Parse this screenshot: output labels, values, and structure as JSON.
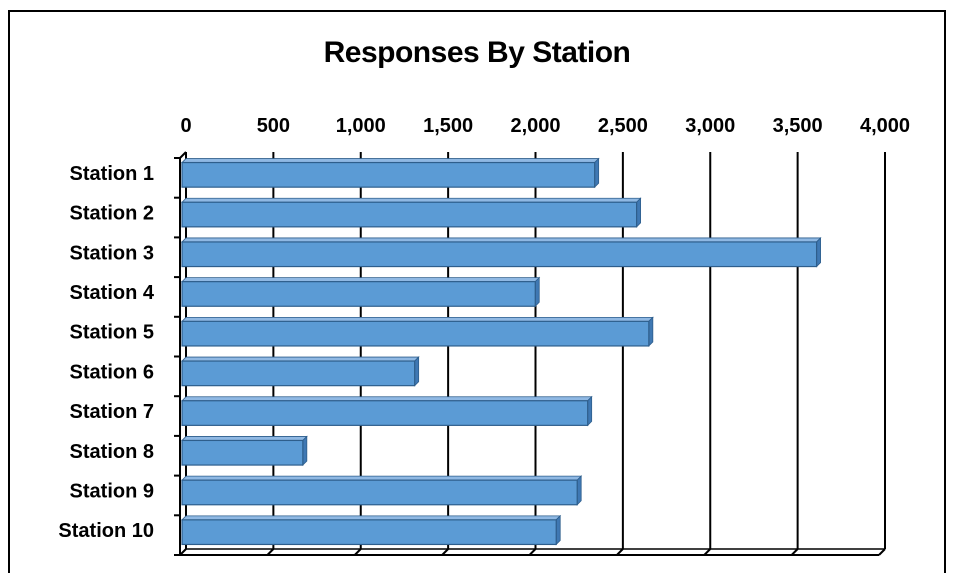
{
  "chart_data": {
    "type": "bar",
    "orientation": "horizontal",
    "title": "Responses By Station",
    "categories": [
      "Station 1",
      "Station 2",
      "Station 3",
      "Station 4",
      "Station 5",
      "Station 6",
      "Station 7",
      "Station 8",
      "Station 9",
      "Station 10"
    ],
    "values": [
      2350,
      2590,
      3620,
      2010,
      2660,
      1320,
      2310,
      680,
      2250,
      2130
    ],
    "x_ticks": [
      "0",
      "500",
      "1,000",
      "1,500",
      "2,000",
      "2,500",
      "3,000",
      "3,500",
      "4,000"
    ],
    "xlim": [
      0,
      4000
    ],
    "x_axis_position": "top",
    "grid": true,
    "legend": "none",
    "bar_color": "#5b9bd5",
    "bar_edge_color": "#2e5e8c",
    "style": "3d"
  }
}
